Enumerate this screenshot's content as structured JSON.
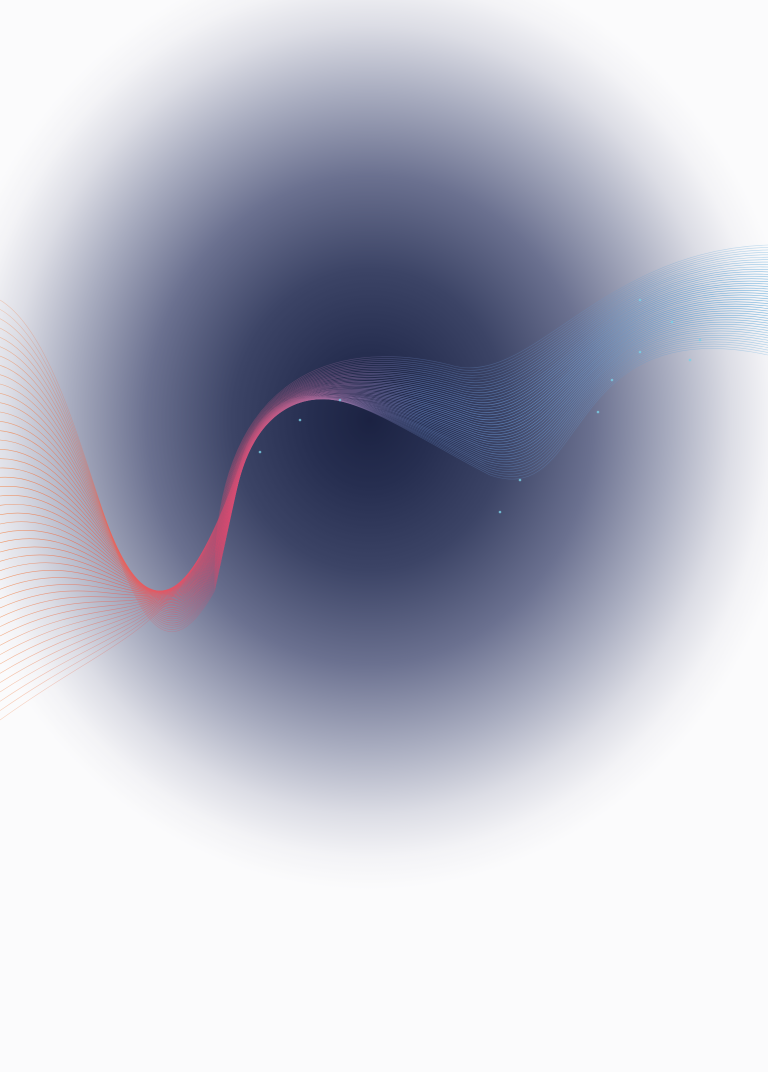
{
  "background": {
    "base_color": "#fbfbfc",
    "glow_color": "#1b2242"
  },
  "ribbon": {
    "warm_color": "#e0466a",
    "orange_color": "#f0864a",
    "cool_color": "#58a6d8",
    "highlight_color": "#7ad0e6"
  }
}
